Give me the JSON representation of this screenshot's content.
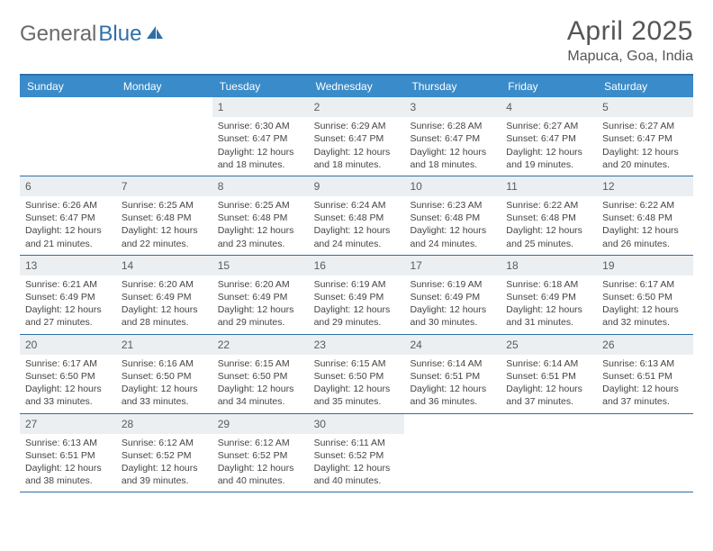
{
  "logo": {
    "textGray": "General",
    "textBlue": "Blue"
  },
  "header": {
    "month": "April 2025",
    "location": "Mapuca, Goa, India"
  },
  "colors": {
    "accent": "#2f6fa8",
    "headerBar": "#3a8bc9",
    "dayNumBg": "#eceff1",
    "bodyText": "#444444",
    "titleText": "#555555",
    "logoGray": "#6a6a6a"
  },
  "typography": {
    "body_pt": 10.5,
    "daynum_pt": 12,
    "head_pt": 12,
    "month_pt": 30,
    "location_pt": 16
  },
  "daysOfWeek": [
    "Sunday",
    "Monday",
    "Tuesday",
    "Wednesday",
    "Thursday",
    "Friday",
    "Saturday"
  ],
  "startOffset": 2,
  "days": [
    {
      "n": 1,
      "sr": "6:30 AM",
      "ss": "6:47 PM",
      "dl": "12 hours and 18 minutes."
    },
    {
      "n": 2,
      "sr": "6:29 AM",
      "ss": "6:47 PM",
      "dl": "12 hours and 18 minutes."
    },
    {
      "n": 3,
      "sr": "6:28 AM",
      "ss": "6:47 PM",
      "dl": "12 hours and 18 minutes."
    },
    {
      "n": 4,
      "sr": "6:27 AM",
      "ss": "6:47 PM",
      "dl": "12 hours and 19 minutes."
    },
    {
      "n": 5,
      "sr": "6:27 AM",
      "ss": "6:47 PM",
      "dl": "12 hours and 20 minutes."
    },
    {
      "n": 6,
      "sr": "6:26 AM",
      "ss": "6:47 PM",
      "dl": "12 hours and 21 minutes."
    },
    {
      "n": 7,
      "sr": "6:25 AM",
      "ss": "6:48 PM",
      "dl": "12 hours and 22 minutes."
    },
    {
      "n": 8,
      "sr": "6:25 AM",
      "ss": "6:48 PM",
      "dl": "12 hours and 23 minutes."
    },
    {
      "n": 9,
      "sr": "6:24 AM",
      "ss": "6:48 PM",
      "dl": "12 hours and 24 minutes."
    },
    {
      "n": 10,
      "sr": "6:23 AM",
      "ss": "6:48 PM",
      "dl": "12 hours and 24 minutes."
    },
    {
      "n": 11,
      "sr": "6:22 AM",
      "ss": "6:48 PM",
      "dl": "12 hours and 25 minutes."
    },
    {
      "n": 12,
      "sr": "6:22 AM",
      "ss": "6:48 PM",
      "dl": "12 hours and 26 minutes."
    },
    {
      "n": 13,
      "sr": "6:21 AM",
      "ss": "6:49 PM",
      "dl": "12 hours and 27 minutes."
    },
    {
      "n": 14,
      "sr": "6:20 AM",
      "ss": "6:49 PM",
      "dl": "12 hours and 28 minutes."
    },
    {
      "n": 15,
      "sr": "6:20 AM",
      "ss": "6:49 PM",
      "dl": "12 hours and 29 minutes."
    },
    {
      "n": 16,
      "sr": "6:19 AM",
      "ss": "6:49 PM",
      "dl": "12 hours and 29 minutes."
    },
    {
      "n": 17,
      "sr": "6:19 AM",
      "ss": "6:49 PM",
      "dl": "12 hours and 30 minutes."
    },
    {
      "n": 18,
      "sr": "6:18 AM",
      "ss": "6:49 PM",
      "dl": "12 hours and 31 minutes."
    },
    {
      "n": 19,
      "sr": "6:17 AM",
      "ss": "6:50 PM",
      "dl": "12 hours and 32 minutes."
    },
    {
      "n": 20,
      "sr": "6:17 AM",
      "ss": "6:50 PM",
      "dl": "12 hours and 33 minutes."
    },
    {
      "n": 21,
      "sr": "6:16 AM",
      "ss": "6:50 PM",
      "dl": "12 hours and 33 minutes."
    },
    {
      "n": 22,
      "sr": "6:15 AM",
      "ss": "6:50 PM",
      "dl": "12 hours and 34 minutes."
    },
    {
      "n": 23,
      "sr": "6:15 AM",
      "ss": "6:50 PM",
      "dl": "12 hours and 35 minutes."
    },
    {
      "n": 24,
      "sr": "6:14 AM",
      "ss": "6:51 PM",
      "dl": "12 hours and 36 minutes."
    },
    {
      "n": 25,
      "sr": "6:14 AM",
      "ss": "6:51 PM",
      "dl": "12 hours and 37 minutes."
    },
    {
      "n": 26,
      "sr": "6:13 AM",
      "ss": "6:51 PM",
      "dl": "12 hours and 37 minutes."
    },
    {
      "n": 27,
      "sr": "6:13 AM",
      "ss": "6:51 PM",
      "dl": "12 hours and 38 minutes."
    },
    {
      "n": 28,
      "sr": "6:12 AM",
      "ss": "6:52 PM",
      "dl": "12 hours and 39 minutes."
    },
    {
      "n": 29,
      "sr": "6:12 AM",
      "ss": "6:52 PM",
      "dl": "12 hours and 40 minutes."
    },
    {
      "n": 30,
      "sr": "6:11 AM",
      "ss": "6:52 PM",
      "dl": "12 hours and 40 minutes."
    }
  ],
  "labels": {
    "sunrise": "Sunrise:",
    "sunset": "Sunset:",
    "daylight": "Daylight:"
  }
}
